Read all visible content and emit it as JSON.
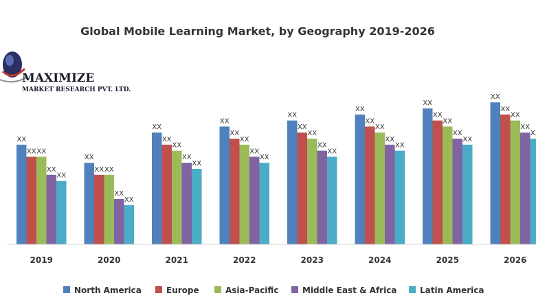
{
  "logo": {
    "name": "MAXIMIZE",
    "tagline": "MARKET RESEARCH PVT. LTD."
  },
  "chart_data": {
    "type": "bar",
    "title": "Global Mobile Learning Market, by Geography 2019-2026",
    "xlabel": "",
    "ylabel": "",
    "ylim": [
      0,
      100
    ],
    "grid": false,
    "legend_position": "bottom",
    "data_label": "XX",
    "categories": [
      "2019",
      "2020",
      "2021",
      "2022",
      "2023",
      "2024",
      "2025",
      "2026"
    ],
    "series": [
      {
        "name": "North America",
        "color": "#4f81bd",
        "values": [
          66,
          54,
          74,
          78,
          82,
          86,
          90,
          94
        ]
      },
      {
        "name": "Europe",
        "color": "#c0504d",
        "values": [
          58,
          46,
          66,
          70,
          74,
          78,
          82,
          86
        ]
      },
      {
        "name": "Asia-Pacific",
        "color": "#9bbb59",
        "values": [
          58,
          46,
          62,
          66,
          70,
          74,
          78,
          82
        ]
      },
      {
        "name": "Middle East & Africa",
        "color": "#8064a2",
        "values": [
          46,
          30,
          54,
          58,
          62,
          66,
          70,
          74
        ]
      },
      {
        "name": "Latin America",
        "color": "#4bacc6",
        "values": [
          42,
          26,
          50,
          54,
          58,
          62,
          66,
          70
        ]
      }
    ]
  }
}
